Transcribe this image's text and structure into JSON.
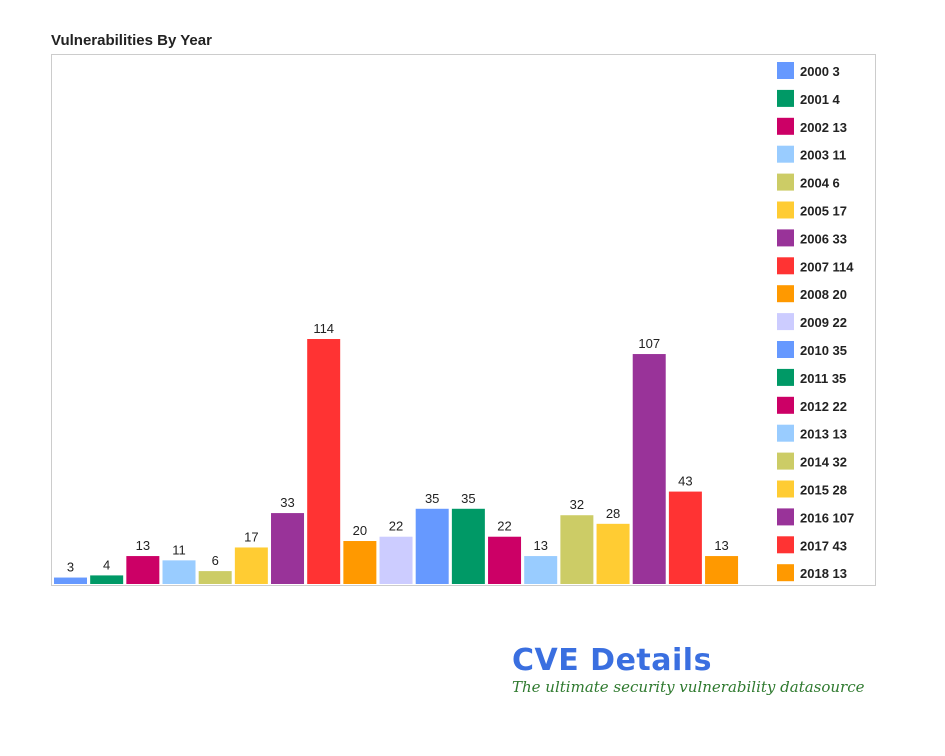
{
  "chart_data": {
    "type": "bar",
    "title": "Vulnerabilities By Year",
    "categories": [
      "2000",
      "2001",
      "2002",
      "2003",
      "2004",
      "2005",
      "2006",
      "2007",
      "2008",
      "2009",
      "2010",
      "2011",
      "2012",
      "2013",
      "2014",
      "2015",
      "2016",
      "2017",
      "2018"
    ],
    "values": [
      3,
      4,
      13,
      11,
      6,
      17,
      33,
      114,
      20,
      22,
      35,
      35,
      22,
      13,
      32,
      28,
      107,
      43,
      13
    ],
    "colors": [
      "#6699ff",
      "#009966",
      "#cc0066",
      "#99ccff",
      "#cccc66",
      "#ffcc33",
      "#993399",
      "#ff3333",
      "#ff9900",
      "#ccccff",
      "#6699ff",
      "#009966",
      "#cc0066",
      "#99ccff",
      "#cccc66",
      "#ffcc33",
      "#993399",
      "#ff3333",
      "#ff9900"
    ],
    "legend_labels": [
      "2000 3",
      "2001 4",
      "2002 13",
      "2003 11",
      "2004 6",
      "2005 17",
      "2006 33",
      "2007 114",
      "2008 20",
      "2009 22",
      "2010 35",
      "2011 35",
      "2012 22",
      "2013 13",
      "2014 32",
      "2015 28",
      "2016 107",
      "2017 43",
      "2018 13"
    ],
    "legend_position": "right",
    "data_labels": true,
    "grid": false,
    "ylim": [
      0,
      120
    ]
  },
  "branding": {
    "name": "CVE Details",
    "tagline": "The ultimate security vulnerability datasource"
  }
}
